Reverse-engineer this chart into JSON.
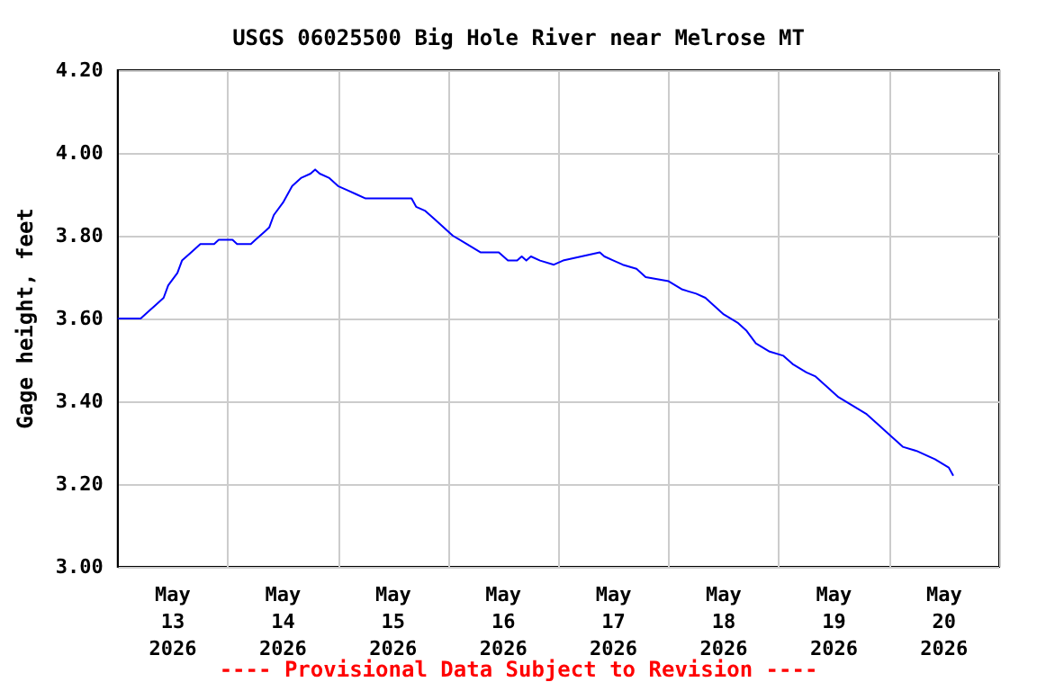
{
  "chart_data": {
    "type": "line",
    "title": "USGS 06025500 Big Hole River near Melrose MT",
    "ylabel": "Gage height, feet",
    "annotations": [
      "---- Provisional Data Subject to Revision ----"
    ],
    "x": [
      "2026-05-13T00:00",
      "2026-05-13T05:00",
      "2026-05-13T07:00",
      "2026-05-13T08:00",
      "2026-05-13T10:00",
      "2026-05-13T11:00",
      "2026-05-13T13:00",
      "2026-05-13T14:00",
      "2026-05-13T16:00",
      "2026-05-13T18:00",
      "2026-05-13T21:00",
      "2026-05-13T22:00",
      "2026-05-14T01:00",
      "2026-05-14T02:00",
      "2026-05-14T05:00",
      "2026-05-14T06:00",
      "2026-05-14T08:00",
      "2026-05-14T09:00",
      "2026-05-14T10:00",
      "2026-05-14T12:00",
      "2026-05-14T14:00",
      "2026-05-14T16:00",
      "2026-05-14T18:00",
      "2026-05-14T19:00",
      "2026-05-14T20:00",
      "2026-05-14T22:00",
      "2026-05-15T00:00",
      "2026-05-15T02:00",
      "2026-05-15T04:00",
      "2026-05-15T06:00",
      "2026-05-15T16:00",
      "2026-05-15T17:00",
      "2026-05-15T19:00",
      "2026-05-15T21:00",
      "2026-05-15T23:00",
      "2026-05-16T01:00",
      "2026-05-16T04:00",
      "2026-05-16T07:00",
      "2026-05-16T11:00",
      "2026-05-16T13:00",
      "2026-05-16T15:00",
      "2026-05-16T16:00",
      "2026-05-16T17:00",
      "2026-05-16T18:00",
      "2026-05-16T20:00",
      "2026-05-16T23:00",
      "2026-05-17T01:00",
      "2026-05-17T05:00",
      "2026-05-17T09:00",
      "2026-05-17T10:00",
      "2026-05-17T12:00",
      "2026-05-17T14:00",
      "2026-05-17T17:00",
      "2026-05-17T19:00",
      "2026-05-18T00:00",
      "2026-05-18T03:00",
      "2026-05-18T06:00",
      "2026-05-18T08:00",
      "2026-05-18T10:00",
      "2026-05-18T12:00",
      "2026-05-18T15:00",
      "2026-05-18T17:00",
      "2026-05-18T19:00",
      "2026-05-18T22:00",
      "2026-05-19T01:00",
      "2026-05-19T03:00",
      "2026-05-19T06:00",
      "2026-05-19T08:00",
      "2026-05-19T11:00",
      "2026-05-19T13:00",
      "2026-05-19T16:00",
      "2026-05-19T19:00",
      "2026-05-19T22:00",
      "2026-05-20T00:00",
      "2026-05-20T03:00",
      "2026-05-20T06:00",
      "2026-05-20T10:00",
      "2026-05-20T13:00",
      "2026-05-20T14:00"
    ],
    "series": [
      {
        "color": "#0000ff",
        "values": [
          3.6,
          3.6,
          3.62,
          3.63,
          3.65,
          3.68,
          3.71,
          3.74,
          3.76,
          3.78,
          3.78,
          3.79,
          3.79,
          3.78,
          3.78,
          3.79,
          3.81,
          3.82,
          3.85,
          3.88,
          3.92,
          3.94,
          3.95,
          3.96,
          3.95,
          3.94,
          3.92,
          3.91,
          3.9,
          3.89,
          3.89,
          3.87,
          3.86,
          3.84,
          3.82,
          3.8,
          3.78,
          3.76,
          3.76,
          3.74,
          3.74,
          3.75,
          3.74,
          3.75,
          3.74,
          3.73,
          3.74,
          3.75,
          3.76,
          3.75,
          3.74,
          3.73,
          3.72,
          3.7,
          3.69,
          3.67,
          3.66,
          3.65,
          3.63,
          3.61,
          3.59,
          3.57,
          3.54,
          3.52,
          3.51,
          3.49,
          3.47,
          3.46,
          3.43,
          3.41,
          3.39,
          3.37,
          3.34,
          3.32,
          3.29,
          3.28,
          3.26,
          3.24,
          3.22
        ]
      }
    ],
    "xlim": [
      "2026-05-13T00:00",
      "2026-05-21T00:00"
    ],
    "xticks": [
      {
        "value": "2026-05-13T00:00",
        "label": null
      },
      {
        "value": "2026-05-13T12:00",
        "label": "May\n13\n2026"
      },
      {
        "value": "2026-05-14T00:00",
        "label": null
      },
      {
        "value": "2026-05-14T12:00",
        "label": "May\n14\n2026"
      },
      {
        "value": "2026-05-15T00:00",
        "label": null
      },
      {
        "value": "2026-05-15T12:00",
        "label": "May\n15\n2026"
      },
      {
        "value": "2026-05-16T00:00",
        "label": null
      },
      {
        "value": "2026-05-16T12:00",
        "label": "May\n16\n2026"
      },
      {
        "value": "2026-05-17T00:00",
        "label": null
      },
      {
        "value": "2026-05-17T12:00",
        "label": "May\n17\n2026"
      },
      {
        "value": "2026-05-18T00:00",
        "label": null
      },
      {
        "value": "2026-05-18T12:00",
        "label": "May\n18\n2026"
      },
      {
        "value": "2026-05-19T00:00",
        "label": null
      },
      {
        "value": "2026-05-19T12:00",
        "label": "May\n19\n2026"
      },
      {
        "value": "2026-05-20T00:00",
        "label": null
      },
      {
        "value": "2026-05-20T12:00",
        "label": "May\n20\n2026"
      },
      {
        "value": "2026-05-21T00:00",
        "label": null
      }
    ],
    "ylim": [
      3.0,
      4.2
    ],
    "yticks": [
      {
        "value": 3.0,
        "label": "3.00"
      },
      {
        "value": 3.2,
        "label": "3.20"
      },
      {
        "value": 3.4,
        "label": "3.40"
      },
      {
        "value": 3.6,
        "label": "3.60"
      },
      {
        "value": 3.8,
        "label": "3.80"
      },
      {
        "value": 4.0,
        "label": "4.00"
      },
      {
        "value": 4.2,
        "label": "4.20"
      }
    ],
    "grid": true,
    "marker": "none",
    "line_style": "solid"
  }
}
